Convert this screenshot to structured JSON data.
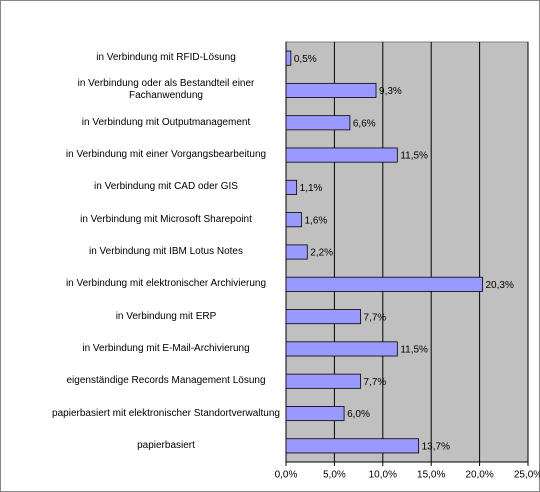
{
  "chart_data": {
    "type": "bar",
    "orientation": "horizontal",
    "categories": [
      "in Verbindung mit RFID-Lösung",
      "in Verbindung oder als Bestandteil einer Fachanwendung",
      "in Verbindung mit Outputmanagement",
      "in Verbindung mit einer Vorgangsbearbeitung",
      "in Verbindung mit CAD oder GIS",
      "in Verbindung mit Microsoft Sharepoint",
      "in Verbindung mit IBM Lotus Notes",
      "in Verbindung mit elektronischer Archivierung",
      "in Verbindung mit ERP",
      "in Verbindung mit E-Mail-Archivierung",
      "eigenständige Records Management Lösung",
      "papierbasiert mit elektronischer Standortverwaltung",
      "papierbasiert"
    ],
    "values": [
      0.5,
      9.3,
      6.6,
      11.5,
      1.1,
      1.6,
      2.2,
      20.3,
      7.7,
      11.5,
      7.7,
      6.0,
      13.7
    ],
    "value_labels": [
      "0,5%",
      "9,3%",
      "6,6%",
      "11,5%",
      "1,1%",
      "1,6%",
      "2,2%",
      "20,3%",
      "7,7%",
      "11,5%",
      "7,7%",
      "6,0%",
      "13,7%"
    ],
    "color": "#9999ff",
    "xlim": [
      0,
      25
    ],
    "xticks": [
      {
        "value": 0,
        "label": "0,0%"
      },
      {
        "value": 5,
        "label": "5,0%"
      },
      {
        "value": 10,
        "label": "10,0%"
      },
      {
        "value": 15,
        "label": "15,0%"
      },
      {
        "value": 20,
        "label": "20,0%"
      },
      {
        "value": 25,
        "label": "25,0%"
      }
    ],
    "grid": true
  }
}
